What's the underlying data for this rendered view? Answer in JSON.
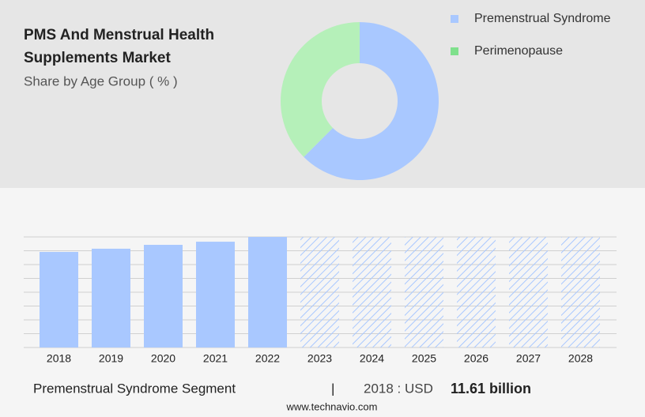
{
  "chart_data": [
    {
      "type": "donut",
      "title": "PMS And Menstrual Health Supplements Market",
      "subtitle": "Share by Age Group ( % )",
      "categories": [
        "Premenstrual Syndrome",
        "Perimenopause"
      ],
      "values": [
        62.5,
        37.5
      ],
      "colors": [
        "#a9c8ff",
        "#b5f0b9"
      ],
      "legend_colors": [
        "#a9c8ff",
        "#7fe08c"
      ],
      "legend": "right"
    },
    {
      "type": "bar",
      "categories": [
        "2018",
        "2019",
        "2020",
        "2021",
        "2022",
        "2023",
        "2024",
        "2025",
        "2026",
        "2027",
        "2028"
      ],
      "values": [
        11.61,
        12.0,
        12.47,
        12.85,
        13.43,
        null,
        null,
        null,
        null,
        null,
        null
      ],
      "color": "#a9c8ff",
      "ylim": [
        0,
        13.43
      ],
      "grid": true
    }
  ],
  "footer": {
    "segment": "Premenstrual Syndrome Segment",
    "separator": "|",
    "year": "2018 : USD",
    "value": "11.61 billion",
    "source": "www.technavio.com"
  }
}
